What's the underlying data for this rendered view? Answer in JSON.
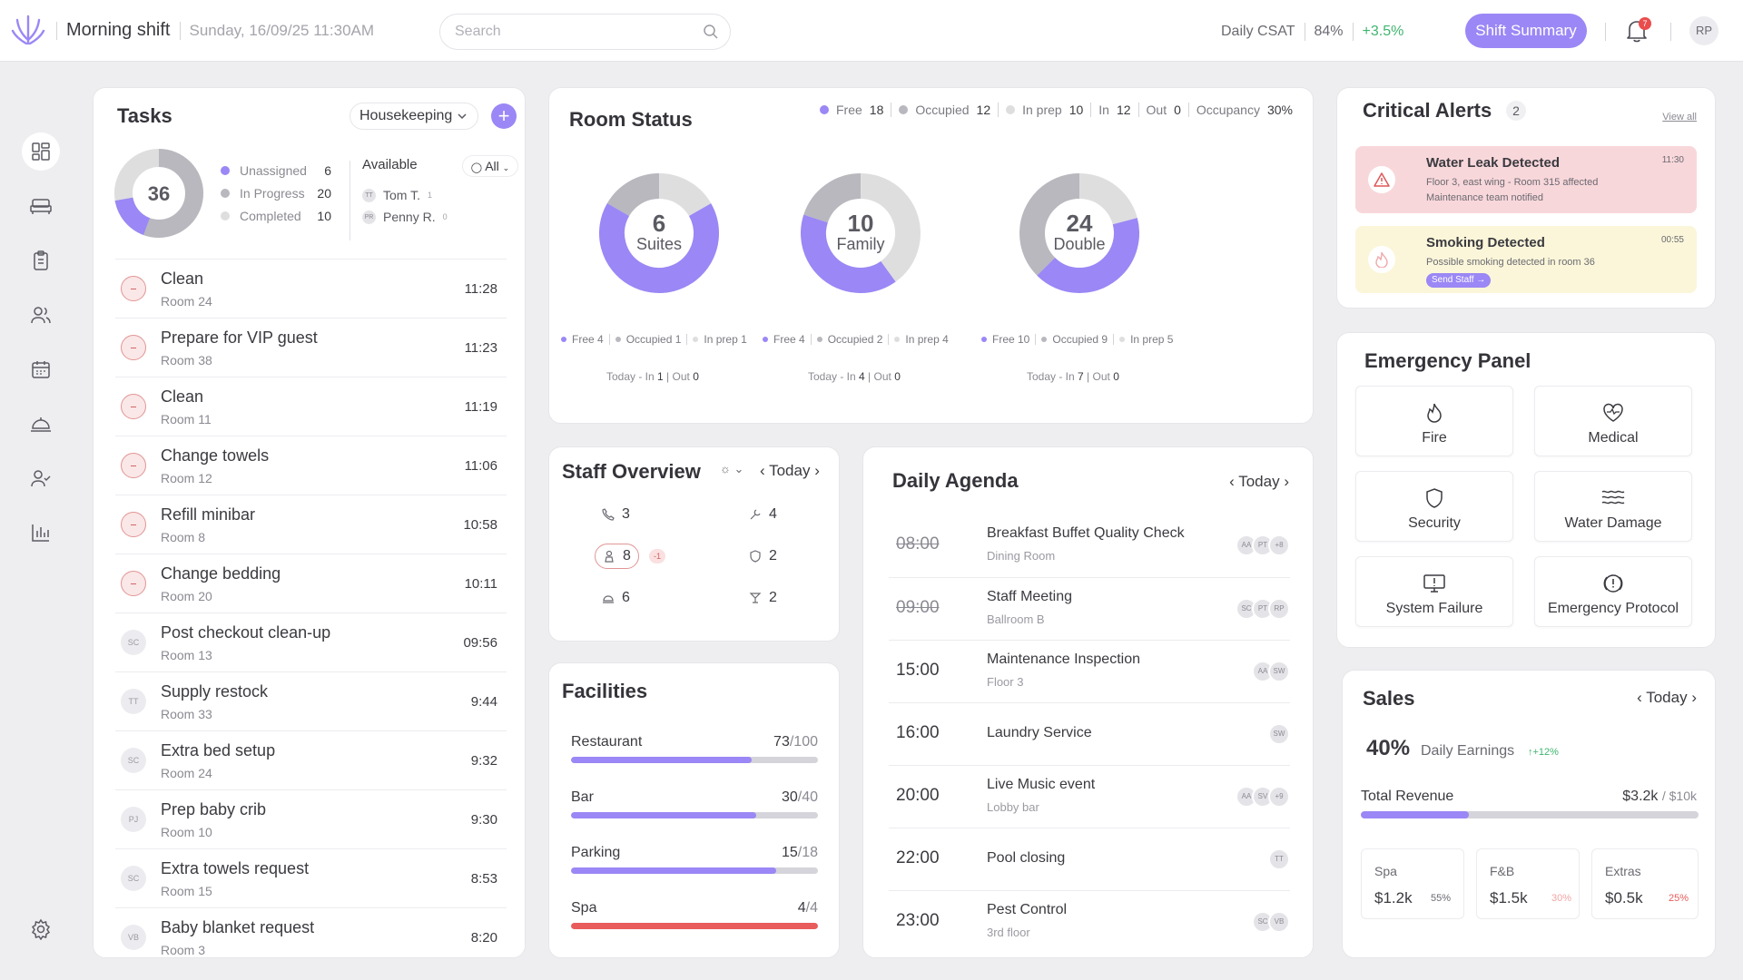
{
  "header": {
    "shift": "Morning shift",
    "datetime": "Sunday, 16/09/25  11:30AM",
    "search_placeholder": "Search",
    "csat_label": "Daily CSAT",
    "csat_value": "84%",
    "csat_delta": "+3.5%",
    "shift_summary": "Shift Summary",
    "notif_count": "7",
    "avatar": "RP"
  },
  "sidebar": {
    "icons": [
      "dashboard-icon",
      "bed-icon",
      "clipboard-icon",
      "users-icon",
      "calendar-icon",
      "service-bell-icon",
      "user-check-icon",
      "bar-chart-icon"
    ],
    "settings": "gear-icon"
  },
  "tasks": {
    "title": "Tasks",
    "department": "Housekeeping",
    "total": "36",
    "legend": [
      {
        "label": "Unassigned",
        "value": "6",
        "color": "#9b87f5"
      },
      {
        "label": "In Progress",
        "value": "20",
        "color": "#b8b8be"
      },
      {
        "label": "Completed",
        "value": "10",
        "color": "#dededf"
      }
    ],
    "available_label": "Available",
    "filter": "All",
    "staff": [
      {
        "initials": "TT",
        "name": "Tom T.",
        "count": "1"
      },
      {
        "initials": "PR",
        "name": "Penny R.",
        "count": "0"
      }
    ],
    "items": [
      {
        "name": "Clean",
        "room": "Room 24",
        "time": "11:28",
        "icon": "red",
        "initials": ""
      },
      {
        "name": "Prepare for VIP guest",
        "room": "Room 38",
        "time": "11:23",
        "icon": "red",
        "initials": ""
      },
      {
        "name": "Clean",
        "room": "Room 11",
        "time": "11:19",
        "icon": "red",
        "initials": ""
      },
      {
        "name": "Change towels",
        "room": "Room 12",
        "time": "11:06",
        "icon": "red",
        "initials": ""
      },
      {
        "name": "Refill minibar",
        "room": "Room 8",
        "time": "10:58",
        "icon": "red",
        "initials": ""
      },
      {
        "name": "Change bedding",
        "room": "Room 20",
        "time": "10:11",
        "icon": "red",
        "initials": ""
      },
      {
        "name": "Post checkout clean-up",
        "room": "Room 13",
        "time": "09:56",
        "icon": "grey",
        "initials": "SC"
      },
      {
        "name": "Supply restock",
        "room": "Room 33",
        "time": "9:44",
        "icon": "grey",
        "initials": "TT"
      },
      {
        "name": "Extra bed setup",
        "room": "Room 24",
        "time": "9:32",
        "icon": "grey",
        "initials": "SC"
      },
      {
        "name": "Prep baby crib",
        "room": "Room 10",
        "time": "9:30",
        "icon": "grey",
        "initials": "PJ"
      },
      {
        "name": "Extra towels request",
        "room": "Room 15",
        "time": "8:53",
        "icon": "grey",
        "initials": "SC"
      },
      {
        "name": "Baby blanket request",
        "room": "Room 3",
        "time": "8:20",
        "icon": "grey",
        "initials": "VB"
      }
    ]
  },
  "room_status": {
    "title": "Room Status",
    "legend": {
      "free_label": "Free",
      "free": "18",
      "occupied_label": "Occupied",
      "occupied": "12",
      "inprep_label": "In prep",
      "inprep": "10",
      "in_label": "In",
      "in": "12",
      "out_label": "Out",
      "out": "0",
      "occupancy_label": "Occupancy",
      "occupancy": "30%"
    },
    "types": [
      {
        "count": "6",
        "name": "Suites",
        "free": "4",
        "occupied": "1",
        "inprep": "1",
        "in": "1",
        "out": "0"
      },
      {
        "count": "10",
        "name": "Family",
        "free": "4",
        "occupied": "2",
        "inprep": "4",
        "in": "4",
        "out": "0"
      },
      {
        "count": "24",
        "name": "Double",
        "free": "10",
        "occupied": "9",
        "inprep": "5",
        "in": "7",
        "out": "0"
      }
    ],
    "sub_labels": {
      "free": "Free",
      "occupied": "Occupied",
      "inprep": "In prep",
      "today": "Today",
      "in": "In",
      "out": "Out"
    }
  },
  "staff_overview": {
    "title": "Staff Overview",
    "nav": "Today",
    "chips": [
      {
        "icon": "phone-icon",
        "value": "3"
      },
      {
        "icon": "wrench-icon",
        "value": "4"
      },
      {
        "icon": "housekeeper-icon",
        "value": "8",
        "alert": "-1"
      },
      {
        "icon": "shield-icon",
        "value": "2"
      },
      {
        "icon": "room-service-icon",
        "value": "6"
      },
      {
        "icon": "cocktail-icon",
        "value": "2"
      }
    ]
  },
  "facilities": {
    "title": "Facilities",
    "items": [
      {
        "name": "Restaurant",
        "used": "73",
        "cap": "100",
        "pct": 0.73,
        "color": "#9b87f5"
      },
      {
        "name": "Bar",
        "used": "30",
        "cap": "40",
        "pct": 0.75,
        "color": "#9b87f5"
      },
      {
        "name": "Parking",
        "used": "15",
        "cap": "18",
        "pct": 0.83,
        "color": "#9b87f5"
      },
      {
        "name": "Spa",
        "used": "4",
        "cap": "4",
        "pct": 1.0,
        "color": "#e95c5c"
      }
    ]
  },
  "agenda": {
    "title": "Daily Agenda",
    "nav": "Today",
    "items": [
      {
        "time": "08:00",
        "past": true,
        "name": "Breakfast Buffet Quality Check",
        "loc": "Dining Room",
        "avatars": [
          "AA",
          "PT",
          "+8"
        ]
      },
      {
        "time": "09:00",
        "past": true,
        "name": "Staff Meeting",
        "loc": "Ballroom B",
        "avatars": [
          "SC",
          "PT",
          "RP"
        ]
      },
      {
        "time": "15:00",
        "past": false,
        "name": "Maintenance Inspection",
        "loc": "Floor 3",
        "avatars": [
          "AA",
          "SW"
        ]
      },
      {
        "time": "16:00",
        "past": false,
        "name": "Laundry Service",
        "loc": "",
        "avatars": [
          "SW"
        ]
      },
      {
        "time": "20:00",
        "past": false,
        "name": "Live Music event",
        "loc": "Lobby bar",
        "avatars": [
          "AA",
          "SV",
          "+9"
        ]
      },
      {
        "time": "22:00",
        "past": false,
        "name": "Pool closing",
        "loc": "",
        "avatars": [
          "TT"
        ]
      },
      {
        "time": "23:00",
        "past": false,
        "name": "Pest Control",
        "loc": "3rd floor",
        "avatars": [
          "SC",
          "VB"
        ]
      }
    ]
  },
  "alerts": {
    "title": "Critical Alerts",
    "count": "2",
    "view_all": "View all",
    "items": [
      {
        "title": "Water Leak Detected",
        "line1": "Floor 3, east wing - Room 315 affected",
        "line2": "Maintenance team notified",
        "time": "11:30",
        "bg": "#f8d7da",
        "icon": "warning-icon"
      },
      {
        "title": "Smoking Detected",
        "line1": "Possible smoking detected in room 36",
        "line2": "",
        "time": "00:55",
        "bg": "#fbf6d9",
        "icon": "flame-icon",
        "action": "Send Staff →"
      }
    ]
  },
  "emergency": {
    "title": "Emergency Panel",
    "buttons": [
      {
        "label": "Fire",
        "icon": "fire-icon"
      },
      {
        "label": "Medical",
        "icon": "heart-pulse-icon"
      },
      {
        "label": "Security",
        "icon": "shield-icon"
      },
      {
        "label": "Water Damage",
        "icon": "waves-icon"
      },
      {
        "label": "System Failure",
        "icon": "monitor-alert-icon"
      },
      {
        "label": "Emergency Protocol",
        "icon": "alert-circle-icon"
      }
    ]
  },
  "sales": {
    "title": "Sales",
    "nav": "Today",
    "pct": "40%",
    "earnings_label": "Daily Earnings",
    "delta": "+12%",
    "revenue_label": "Total Revenue",
    "revenue": "$3.2k",
    "target": "/ $10k",
    "progress": 0.32,
    "cards": [
      {
        "label": "Spa",
        "value": "$1.2k",
        "pct": "55%",
        "pct_color": "#6a6a72"
      },
      {
        "label": "F&B",
        "value": "$1.5k",
        "pct": "30%",
        "pct_color": "#f2a5a5"
      },
      {
        "label": "Extras",
        "value": "$0.5k",
        "pct": "25%",
        "pct_color": "#e95c5c"
      }
    ]
  }
}
